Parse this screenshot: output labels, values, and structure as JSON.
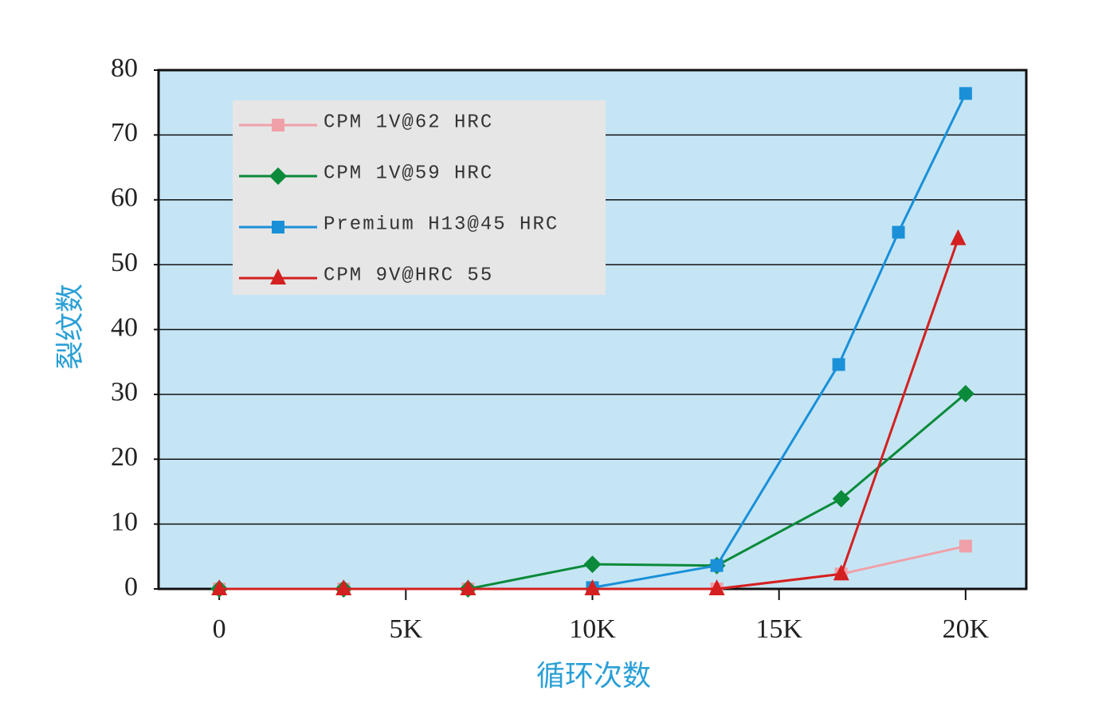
{
  "chart_data": {
    "type": "line",
    "x_label": "循环次数",
    "y_label": "裂纹数",
    "xlim": [
      -1626,
      21626
    ],
    "ylim": [
      0,
      80
    ],
    "xticks": [
      0,
      {
        "value": 5000,
        "label": "5K"
      },
      {
        "value": 10000,
        "label": "10K"
      },
      {
        "value": 15000,
        "label": "15K"
      },
      {
        "value": 20000,
        "label": "20K"
      }
    ],
    "yticks": [
      0,
      10,
      20,
      30,
      40,
      50,
      60,
      70,
      80
    ],
    "grid": true,
    "legend": "upper left",
    "series": [
      {
        "name": "CPM 1V@62 HRC",
        "color": "#f0a0a8",
        "marker": "square",
        "x": [
          0,
          3333,
          6667,
          10000,
          13333,
          16667,
          20000
        ],
        "values": [
          0,
          0,
          0,
          0,
          0,
          2.3,
          6.6
        ]
      },
      {
        "name": "CPM 1V@59 HRC",
        "color": "#0a8a3a",
        "marker": "diamond",
        "x": [
          0,
          3333,
          6667,
          10000,
          13333,
          16667,
          20000
        ],
        "values": [
          0,
          0,
          0,
          3.8,
          3.6,
          13.9,
          30.1
        ]
      },
      {
        "name": "Premium H13@45 HRC",
        "color": "#1a90d8",
        "marker": "square",
        "x": [
          10000,
          13333,
          16600,
          18200,
          20000
        ],
        "values": [
          0.2,
          3.6,
          34.6,
          55,
          76.4
        ]
      },
      {
        "name": "CPM 9V@HRC 55",
        "color": "#d42020",
        "marker": "triangle",
        "x": [
          0,
          3333,
          6667,
          10000,
          13333,
          16667,
          19800
        ],
        "values": [
          0,
          0,
          0,
          0,
          0,
          2.3,
          54
        ]
      }
    ]
  }
}
